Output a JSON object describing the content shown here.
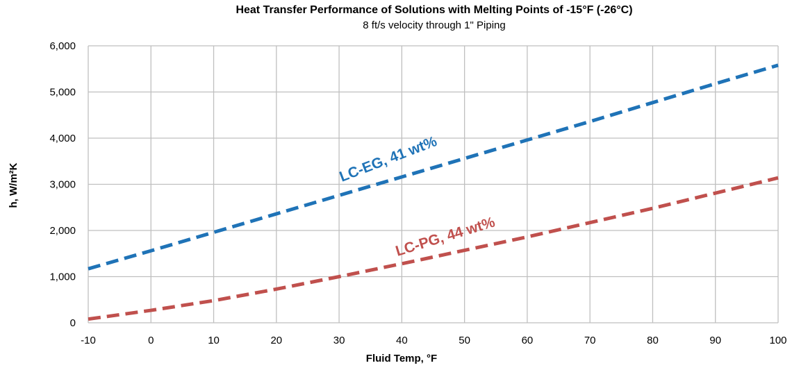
{
  "chart_data": {
    "type": "line",
    "title": "Heat Transfer Performance of Solutions with Melting Points of -15°F (-26°C)",
    "subtitle": "8 ft/s velocity through 1\" Piping",
    "xlabel": "Fluid Temp, °F",
    "ylabel": "h, W/m²K",
    "xlim": [
      -10,
      100
    ],
    "ylim": [
      0,
      6000
    ],
    "x_ticks": [
      -10,
      0,
      10,
      20,
      30,
      40,
      50,
      60,
      70,
      80,
      90,
      100
    ],
    "y_ticks": [
      0,
      1000,
      2000,
      3000,
      4000,
      5000,
      6000
    ],
    "y_tick_labels": [
      "0",
      "1,000",
      "2,000",
      "3,000",
      "4,000",
      "5,000",
      "6,000"
    ],
    "grid": true,
    "series": [
      {
        "name": "LC-EG, 41 wt%",
        "color": "#1f73b7",
        "style": "dashed",
        "x": [
          -10,
          0,
          10,
          20,
          30,
          40,
          50,
          60,
          70,
          80,
          90,
          100
        ],
        "y": [
          1170,
          1560,
          1960,
          2360,
          2760,
          3160,
          3560,
          3960,
          4360,
          4770,
          5180,
          5580
        ]
      },
      {
        "name": "LC-PG, 44 wt%",
        "color": "#c0504d",
        "style": "dashed",
        "x": [
          -10,
          0,
          10,
          20,
          30,
          40,
          50,
          60,
          70,
          80,
          90,
          100
        ],
        "y": [
          80,
          270,
          480,
          730,
          1000,
          1280,
          1570,
          1860,
          2170,
          2480,
          2810,
          3140
        ]
      }
    ]
  }
}
